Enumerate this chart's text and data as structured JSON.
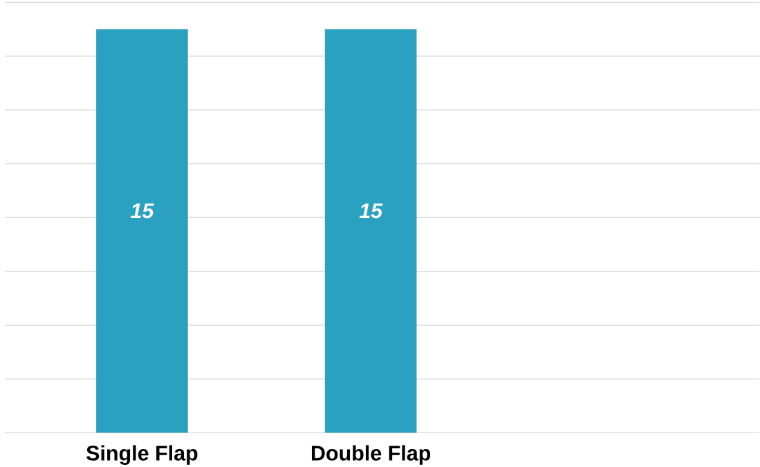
{
  "chart_data": {
    "type": "bar",
    "categories": [
      "Single Flap",
      "Double Flap"
    ],
    "values": [
      15,
      15
    ],
    "color": "#2ba1c1",
    "ylim": [
      0,
      16
    ],
    "yticks": [
      {
        "value": 0,
        "label": null
      },
      {
        "value": 2,
        "label": null
      },
      {
        "value": 4,
        "label": null
      },
      {
        "value": 6,
        "label": null
      },
      {
        "value": 8,
        "label": null
      },
      {
        "value": 10,
        "label": null
      },
      {
        "value": 12,
        "label": null
      },
      {
        "value": 14,
        "label": null
      },
      {
        "value": 16,
        "label": null
      }
    ],
    "tick_labels": "x",
    "grid": "y",
    "data_labels": true
  }
}
